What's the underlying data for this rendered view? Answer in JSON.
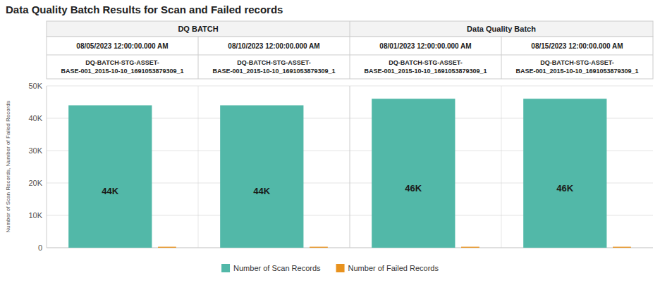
{
  "chart_data": {
    "type": "bar",
    "title": "Data Quality Batch Results for Scan and Failed records",
    "groups": [
      "DQ BATCH",
      "Data Quality Batch"
    ],
    "categories": [
      "08/05/2023 12:00:00.000 AM",
      "08/10/2023 12:00:00.000 AM",
      "08/01/2023 12:00:00.000 AM",
      "08/15/2023 12:00:00.000 AM"
    ],
    "batches": [
      "DQ-BATCH-STG-ASSET-\nBASE-001_2015-10-10_1691053879309_1",
      "DQ-BATCH-STG-ASSET-\nBASE-001_2015-10-10_1691053879309_1",
      "DQ-BATCH-STG-ASSET-\nBASE-001_2015-10-10_1691053879309_1",
      "DQ-BATCH-STG-ASSET-\nBASE-001_2015-10-10_1691053879309_1"
    ],
    "series": [
      {
        "name": "Number of Scan Records",
        "color": "#52b8a8",
        "values": [
          44000,
          44000,
          46000,
          46000
        ],
        "value_labels": [
          "44K",
          "44K",
          "46K",
          "46K"
        ]
      },
      {
        "name": "Number of Failed Records",
        "color": "#e8921e",
        "values": [
          300,
          300,
          300,
          300
        ]
      }
    ],
    "ylabel": "Number of Scan Records, Number of Failed Records",
    "ylim": [
      0,
      50000
    ],
    "yticks": [
      0,
      {
        "value": 10000,
        "label": "10K"
      },
      {
        "value": 20000,
        "label": "20K"
      },
      {
        "value": 30000,
        "label": "30K"
      },
      {
        "value": 40000,
        "label": "40K"
      },
      {
        "value": 50000,
        "label": "50K"
      }
    ],
    "grid": true,
    "data_labels": true,
    "legend": "bottom"
  }
}
